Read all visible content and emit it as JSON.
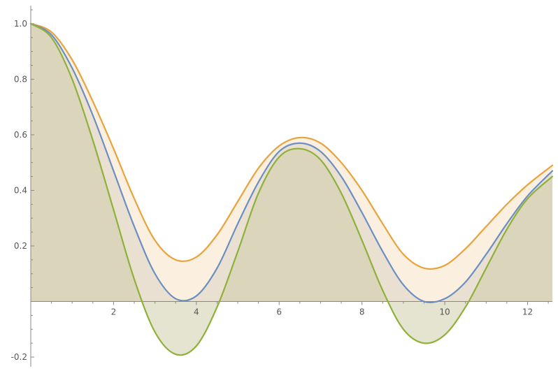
{
  "chart_data": {
    "type": "area",
    "title": "",
    "xlabel": "",
    "ylabel": "",
    "xlim": [
      0,
      12.6
    ],
    "ylim": [
      -0.22,
      1.05
    ],
    "fill_to": 0,
    "grid": false,
    "legend": "none",
    "x_ticks": {
      "major": [
        2,
        4,
        6,
        8,
        10,
        12
      ],
      "labels": [
        "2",
        "4",
        "6",
        "8",
        "10",
        "12"
      ],
      "minor_step": 0.5
    },
    "y_ticks": {
      "major": [
        -0.2,
        0.2,
        0.4,
        0.6,
        0.8,
        1.0
      ],
      "labels": [
        "-0.2",
        "0.2",
        "0.4",
        "0.6",
        "0.8",
        "1.0"
      ],
      "minor_step": 0.05
    },
    "series": [
      {
        "color": "#e8a33c",
        "fill": "#f8e2c4",
        "x": [
          0,
          0.5,
          1,
          1.5,
          2,
          2.5,
          3,
          3.5,
          4,
          4.5,
          5,
          5.5,
          6,
          6.5,
          7,
          7.5,
          8,
          8.5,
          9,
          9.5,
          10,
          10.5,
          11,
          11.5,
          12,
          12.6
        ],
        "values": [
          1.0,
          0.97,
          0.87,
          0.72,
          0.55,
          0.37,
          0.22,
          0.15,
          0.16,
          0.24,
          0.36,
          0.48,
          0.56,
          0.59,
          0.57,
          0.5,
          0.4,
          0.28,
          0.17,
          0.12,
          0.13,
          0.19,
          0.27,
          0.35,
          0.42,
          0.49
        ]
      },
      {
        "color": "#6b8fc2",
        "fill": "#ddd4c4",
        "x": [
          0,
          0.5,
          1,
          1.5,
          2,
          2.5,
          3,
          3.5,
          4,
          4.5,
          5,
          5.5,
          6,
          6.5,
          7,
          7.5,
          8,
          8.5,
          9,
          9.5,
          10,
          10.5,
          11,
          11.5,
          12,
          12.6
        ],
        "values": [
          1.0,
          0.96,
          0.84,
          0.67,
          0.47,
          0.27,
          0.1,
          0.01,
          0.02,
          0.12,
          0.28,
          0.43,
          0.54,
          0.57,
          0.54,
          0.45,
          0.32,
          0.18,
          0.06,
          0.0,
          0.01,
          0.07,
          0.17,
          0.28,
          0.38,
          0.47
        ]
      },
      {
        "color": "#8fb03b",
        "fill": "#cdceaa",
        "x": [
          0,
          0.5,
          1,
          1.5,
          2,
          2.5,
          3,
          3.5,
          4,
          4.5,
          5,
          5.5,
          6,
          6.5,
          7,
          7.5,
          8,
          8.5,
          9,
          9.5,
          10,
          10.5,
          11,
          11.5,
          12,
          12.6
        ],
        "values": [
          1.0,
          0.95,
          0.8,
          0.58,
          0.33,
          0.08,
          -0.11,
          -0.19,
          -0.16,
          -0.02,
          0.18,
          0.39,
          0.52,
          0.55,
          0.51,
          0.39,
          0.22,
          0.04,
          -0.1,
          -0.15,
          -0.12,
          -0.02,
          0.12,
          0.26,
          0.37,
          0.45
        ]
      }
    ]
  }
}
